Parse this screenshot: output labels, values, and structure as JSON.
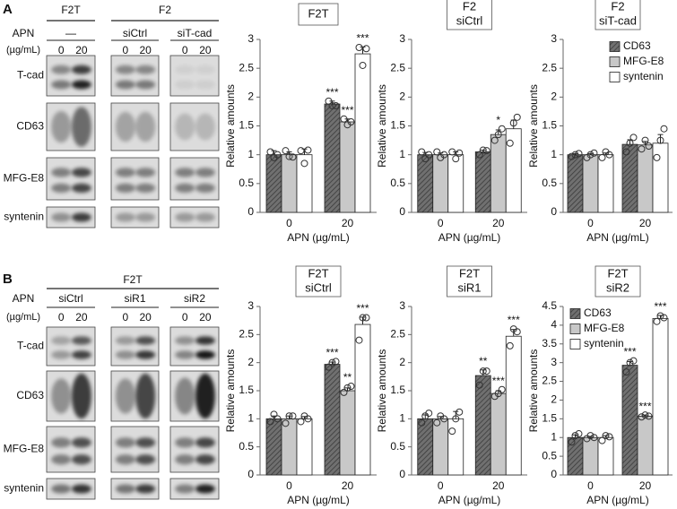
{
  "blots": [
    {
      "letter": "A",
      "headers": [
        "F2T",
        "F2"
      ],
      "apn": "APN",
      "unit": "(µg/mL)",
      "conditions": [
        "—",
        "siCtrl",
        "siT-cad"
      ],
      "doses": [
        "0",
        "20"
      ],
      "rows": [
        "T-cad",
        "CD63",
        "MFG-E8",
        "syntenin"
      ]
    },
    {
      "letter": "B",
      "headers": [
        "F2T"
      ],
      "apn": "APN",
      "unit": "(µg/mL)",
      "conditions": [
        "siCtrl",
        "siR1",
        "siR2"
      ],
      "doses": [
        "0",
        "20"
      ],
      "rows": [
        "T-cad",
        "CD63",
        "MFG-E8",
        "syntenin"
      ]
    }
  ],
  "chart_data": [
    {
      "type": "bar",
      "title": "F2T",
      "categories": [
        "0",
        "20"
      ],
      "x_label": "APN (µg/mL)",
      "y_label": "Relative amounts",
      "ylim": [
        0,
        3
      ],
      "yticks": [
        0,
        0.5,
        1,
        1.5,
        2,
        2.5,
        3
      ],
      "series": [
        {
          "color": "#707070",
          "hatch": true,
          "values": [
            1.0,
            1.88
          ],
          "errors": [
            0.07,
            0.05
          ],
          "points": [
            [
              1.05,
              0.95,
              1.0
            ],
            [
              1.93,
              1.85,
              1.85
            ]
          ],
          "labels": [
            null,
            "***"
          ]
        },
        {
          "color": "#c8c8c8",
          "values": [
            1.0,
            1.57
          ],
          "errors": [
            0.05,
            0.05
          ],
          "points": [
            [
              1.07,
              0.97,
              0.96
            ],
            [
              1.62,
              1.52,
              1.57
            ]
          ],
          "labels": [
            null,
            "***"
          ]
        },
        {
          "color": "#ffffff",
          "values": [
            1.0,
            2.75
          ],
          "errors": [
            0.1,
            0.12
          ],
          "points": [
            [
              1.07,
              0.85,
              1.08
            ],
            [
              2.86,
              2.55,
              2.84
            ]
          ],
          "labels": [
            null,
            "***"
          ]
        }
      ]
    },
    {
      "type": "bar",
      "title": "F2",
      "subtitle": "siCtrl",
      "categories": [
        "0",
        "20"
      ],
      "x_label": "APN (µg/mL)",
      "y_label": "Relative amounts",
      "ylim": [
        0,
        3
      ],
      "yticks": [
        0,
        0.5,
        1,
        1.5,
        2,
        2.5,
        3
      ],
      "series": [
        {
          "color": "#707070",
          "hatch": true,
          "values": [
            1.0,
            1.05
          ],
          "errors": [
            0.04,
            0.03
          ],
          "points": [
            [
              1.05,
              0.93,
              1.0
            ],
            [
              1.0,
              1.08,
              1.07
            ]
          ],
          "labels": [
            null,
            null
          ]
        },
        {
          "color": "#c8c8c8",
          "values": [
            1.0,
            1.35
          ],
          "errors": [
            0.03,
            0.08
          ],
          "points": [
            [
              1.05,
              0.95,
              1.0
            ],
            [
              1.25,
              1.35,
              1.45
            ]
          ],
          "labels": [
            null,
            "*"
          ]
        },
        {
          "color": "#ffffff",
          "values": [
            1.0,
            1.45
          ],
          "errors": [
            0.05,
            0.15
          ],
          "points": [
            [
              1.05,
              0.93,
              1.03
            ],
            [
              1.2,
              1.55,
              1.65
            ]
          ],
          "labels": [
            null,
            null
          ]
        }
      ]
    },
    {
      "type": "bar",
      "title": "F2",
      "subtitle": "siT-cad",
      "categories": [
        "0",
        "20"
      ],
      "x_label": "APN (µg/mL)",
      "y_label": "Relative amounts",
      "ylim": [
        0,
        3
      ],
      "yticks": [
        0,
        0.5,
        1,
        1.5,
        2,
        2.5,
        3
      ],
      "legend": "upper right",
      "series": [
        {
          "name": "CD63",
          "color": "#707070",
          "hatch": true,
          "values": [
            1.0,
            1.18
          ],
          "errors": [
            0.02,
            0.08
          ],
          "points": [
            [
              0.97,
              1.0,
              1.02
            ],
            [
              1.05,
              1.2,
              1.3
            ]
          ],
          "labels": [
            null,
            null
          ]
        },
        {
          "name": "MFG-E8",
          "color": "#c8c8c8",
          "values": [
            1.0,
            1.17
          ],
          "errors": [
            0.02,
            0.06
          ],
          "points": [
            [
              0.95,
              1.0,
              1.03
            ],
            [
              1.1,
              1.25,
              1.15
            ]
          ],
          "labels": [
            null,
            null
          ]
        },
        {
          "name": "syntenin",
          "color": "#ffffff",
          "values": [
            1.0,
            1.2
          ],
          "errors": [
            0.03,
            0.15
          ],
          "points": [
            [
              0.95,
              1.05,
              1.0
            ],
            [
              0.95,
              1.25,
              1.45
            ]
          ],
          "labels": [
            null,
            null
          ]
        }
      ]
    },
    {
      "type": "bar",
      "title": "F2T",
      "subtitle": "siCtrl",
      "categories": [
        "0",
        "20"
      ],
      "x_label": "APN (µg/mL)",
      "y_label": "Relative amounts",
      "ylim": [
        0,
        3
      ],
      "yticks": [
        0,
        0.5,
        1,
        1.5,
        2,
        2.5,
        3
      ],
      "series": [
        {
          "color": "#707070",
          "hatch": true,
          "values": [
            1.0,
            1.97
          ],
          "errors": [
            0.05,
            0.04
          ],
          "points": [
            [
              0.95,
              1.08,
              1.0
            ],
            [
              1.92,
              2.0,
              2.02
            ]
          ],
          "labels": [
            null,
            "***"
          ]
        },
        {
          "color": "#c8c8c8",
          "values": [
            1.0,
            1.5
          ],
          "errors": [
            0.05,
            0.05
          ],
          "points": [
            [
              0.92,
              1.05,
              1.05
            ],
            [
              1.47,
              1.55,
              1.58
            ]
          ],
          "labels": [
            null,
            "**"
          ]
        },
        {
          "color": "#ffffff",
          "values": [
            1.0,
            2.68
          ],
          "errors": [
            0.04,
            0.13
          ],
          "points": [
            [
              0.95,
              1.05,
              1.0
            ],
            [
              2.4,
              2.8,
              2.8
            ]
          ],
          "labels": [
            null,
            "***"
          ]
        }
      ]
    },
    {
      "type": "bar",
      "title": "F2T",
      "subtitle": "siR1",
      "categories": [
        "0",
        "20"
      ],
      "x_label": "APN (µg/mL)",
      "y_label": "Relative amounts",
      "ylim": [
        0,
        3
      ],
      "yticks": [
        0,
        0.5,
        1,
        1.5,
        2,
        2.5,
        3
      ],
      "series": [
        {
          "color": "#707070",
          "hatch": true,
          "values": [
            1.0,
            1.77
          ],
          "errors": [
            0.07,
            0.1
          ],
          "points": [
            [
              0.93,
              1.05,
              1.1
            ],
            [
              1.6,
              1.85,
              1.85
            ]
          ],
          "labels": [
            null,
            "**"
          ]
        },
        {
          "color": "#c8c8c8",
          "values": [
            1.0,
            1.45
          ],
          "errors": [
            0.04,
            0.05
          ],
          "points": [
            [
              0.93,
              1.05,
              1.0
            ],
            [
              1.4,
              1.45,
              1.52
            ]
          ],
          "labels": [
            null,
            "***"
          ]
        },
        {
          "color": "#ffffff",
          "values": [
            1.0,
            2.47
          ],
          "errors": [
            0.13,
            0.12
          ],
          "points": [
            [
              0.78,
              1.0,
              1.12
            ],
            [
              2.3,
              2.6,
              2.55
            ]
          ],
          "labels": [
            null,
            "***"
          ]
        }
      ]
    },
    {
      "type": "bar",
      "title": "F2T",
      "subtitle": "siR2",
      "categories": [
        "0",
        "20"
      ],
      "x_label": "APN (µg/mL)",
      "y_label": "Relative amounts",
      "ylim": [
        0,
        4.5
      ],
      "yticks": [
        0,
        0.5,
        1,
        1.5,
        2,
        2.5,
        3,
        3.5,
        4,
        4.5
      ],
      "legend": "upper left",
      "series": [
        {
          "name": "CD63",
          "color": "#707070",
          "hatch": true,
          "values": [
            1.0,
            2.93
          ],
          "errors": [
            0.07,
            0.1
          ],
          "points": [
            [
              0.88,
              1.05,
              1.1
            ],
            [
              2.75,
              3.0,
              3.05
            ]
          ],
          "labels": [
            null,
            "***"
          ]
        },
        {
          "name": "MFG-E8",
          "color": "#c8c8c8",
          "values": [
            1.0,
            1.57
          ],
          "errors": [
            0.03,
            0.03
          ],
          "points": [
            [
              0.97,
              1.05,
              1.0
            ],
            [
              1.55,
              1.6,
              1.57
            ]
          ],
          "labels": [
            null,
            "***"
          ]
        },
        {
          "name": "syntenin",
          "color": "#ffffff",
          "values": [
            1.0,
            4.18
          ],
          "errors": [
            0.05,
            0.08
          ],
          "points": [
            [
              0.92,
              1.05,
              1.02
            ],
            [
              4.1,
              4.25,
              4.2
            ]
          ],
          "labels": [
            null,
            "***"
          ]
        }
      ]
    }
  ]
}
